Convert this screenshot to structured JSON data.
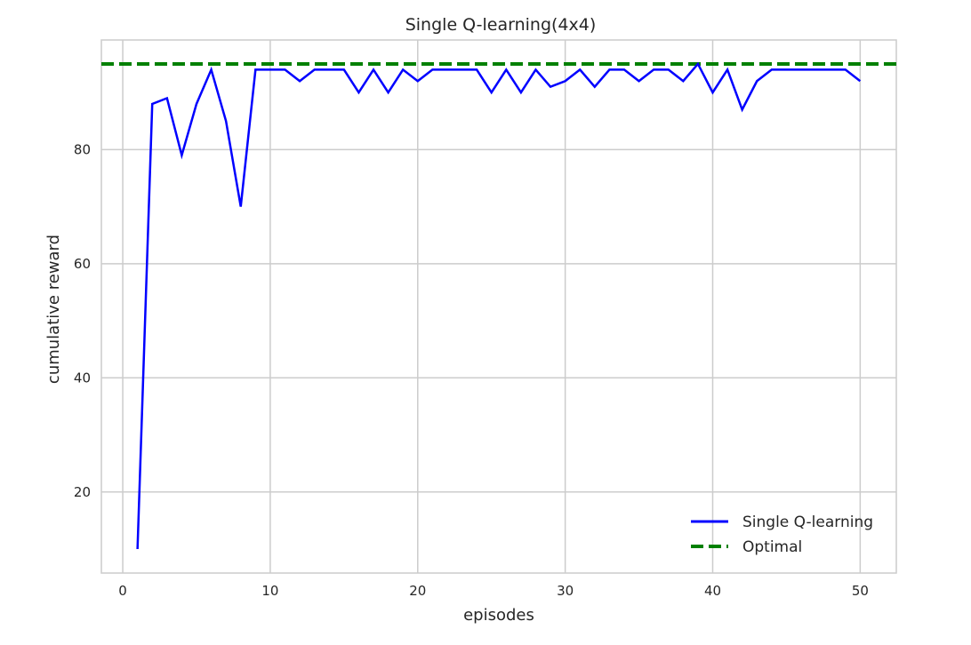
{
  "chart_data": {
    "type": "line",
    "title": "Single Q-learning(4x4)",
    "xlabel": "episodes",
    "ylabel": "cumulative reward",
    "xlim": [
      -1.45,
      52.45
    ],
    "ylim": [
      5.8,
      99.2
    ],
    "xticks": [
      0,
      10,
      20,
      30,
      40,
      50
    ],
    "yticks": [
      20,
      40,
      60,
      80
    ],
    "grid": true,
    "legend_position": "lower-right",
    "series": [
      {
        "name": "Single Q-learning",
        "color": "#0000ff",
        "style": "solid",
        "x": [
          1,
          2,
          3,
          4,
          5,
          6,
          7,
          8,
          9,
          10,
          11,
          12,
          13,
          14,
          15,
          16,
          17,
          18,
          19,
          20,
          21,
          22,
          23,
          24,
          25,
          26,
          27,
          28,
          29,
          30,
          31,
          32,
          33,
          34,
          35,
          36,
          37,
          38,
          39,
          40,
          41,
          42,
          43,
          44,
          45,
          46,
          47,
          48,
          49,
          50
        ],
        "y": [
          10,
          88,
          89,
          79,
          88,
          94,
          85,
          70,
          94,
          94,
          94,
          92,
          94,
          94,
          94,
          90,
          94,
          90,
          94,
          92,
          94,
          94,
          94,
          94,
          90,
          94,
          90,
          94,
          91,
          92,
          94,
          91,
          94,
          94,
          92,
          94,
          94,
          92,
          95,
          90,
          94,
          87,
          92,
          94,
          94,
          94,
          94,
          94,
          94,
          92
        ]
      },
      {
        "name": "Optimal",
        "color": "#008000",
        "style": "dashed",
        "x": [
          -1.45,
          52.45
        ],
        "y": [
          95,
          95
        ]
      }
    ]
  },
  "colors": {
    "grid": "#cccccc",
    "spine": "#cccccc",
    "text": "#262626"
  }
}
